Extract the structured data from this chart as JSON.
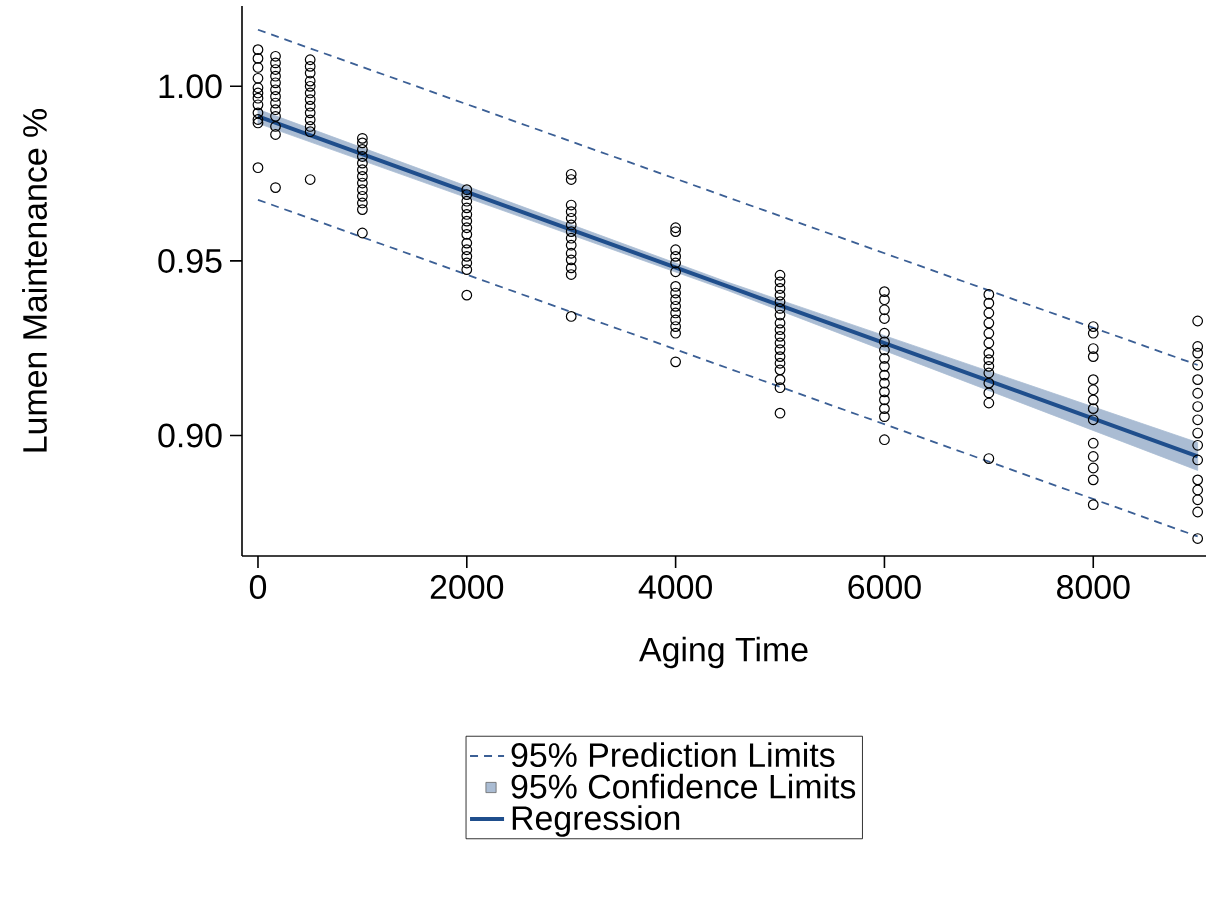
{
  "chart_data": {
    "type": "scatter",
    "xlabel": "Aging Time",
    "ylabel": "Lumen Maintenance %",
    "xlim": [
      -153,
      9080
    ],
    "ylim": [
      0.8655,
      1.023
    ],
    "xticks": [
      0,
      2000,
      4000,
      6000,
      8000
    ],
    "yticks": [
      {
        "value": 0.9,
        "label": "0.90"
      },
      {
        "value": 0.95,
        "label": "0.95"
      },
      {
        "value": 1.0,
        "label": "1.00"
      }
    ],
    "legend": "bottom",
    "annotations": [
      "95% Confidence Limits"
    ],
    "series": [
      {
        "color": "#000000",
        "marker": "circle",
        "x": [
          0,
          0,
          0,
          0,
          0,
          0,
          0,
          0,
          0,
          0,
          0,
          0,
          168,
          168,
          168,
          168,
          168,
          168,
          168,
          168,
          168,
          168,
          168,
          168,
          168,
          500,
          500,
          500,
          500,
          500,
          500,
          500,
          500,
          500,
          500,
          500,
          500,
          500,
          1000,
          1000,
          1000,
          1000,
          1000,
          1000,
          1000,
          1000,
          1000,
          1000,
          1000,
          1000,
          1000,
          2000,
          2000,
          2000,
          2000,
          2000,
          2000,
          2000,
          2000,
          2000,
          2000,
          2000,
          2000,
          2000,
          2000,
          3000,
          3000,
          3000,
          3000,
          3000,
          3000,
          3000,
          3000,
          3000,
          3000,
          3000,
          3000,
          3000,
          3000,
          4000,
          4000,
          4000,
          4000,
          4000,
          4000,
          4000,
          4000,
          4000,
          4000,
          4000,
          4000,
          4000,
          4000,
          4000,
          5000,
          5000,
          5000,
          5000,
          5000,
          5000,
          5000,
          5000,
          5000,
          5000,
          5000,
          5000,
          5000,
          5000,
          5000,
          5000,
          5000,
          5000,
          6000,
          6000,
          6000,
          6000,
          6000,
          6000,
          6000,
          6000,
          6000,
          6000,
          6000,
          6000,
          6000,
          6000,
          6000,
          6000,
          7000,
          7000,
          7000,
          7000,
          7000,
          7000,
          7000,
          7000,
          7000,
          7000,
          7000,
          7000,
          7000,
          7000,
          8000,
          8000,
          8000,
          8000,
          8000,
          8000,
          8000,
          8000,
          8000,
          8000,
          8000,
          8000,
          8000,
          8000,
          9000,
          9000,
          9000,
          9000,
          9000,
          9000,
          9000,
          9000,
          9000,
          9000,
          9000,
          9000,
          9000,
          9000,
          9000,
          9000
        ],
        "values": [
          1.0105,
          1.008,
          1.0054,
          1.0023,
          0.9996,
          0.9981,
          0.9966,
          0.9947,
          0.9924,
          0.9905,
          0.9895,
          0.9767,
          1.0086,
          1.0067,
          1.0048,
          1.0029,
          1.001,
          0.999,
          0.9971,
          0.9952,
          0.9933,
          0.9914,
          0.9885,
          0.9862,
          0.971,
          1.0076,
          1.0057,
          1.0038,
          1.0015,
          1.0,
          0.9981,
          0.9962,
          0.9943,
          0.9924,
          0.9904,
          0.9885,
          0.987,
          0.9733,
          0.9851,
          0.9838,
          0.9819,
          0.9799,
          0.978,
          0.9761,
          0.9742,
          0.9723,
          0.9704,
          0.9685,
          0.9666,
          0.9647,
          0.958,
          0.9704,
          0.969,
          0.9671,
          0.9652,
          0.9633,
          0.9614,
          0.9595,
          0.9576,
          0.9551,
          0.9532,
          0.9513,
          0.9494,
          0.9475,
          0.9402,
          0.9748,
          0.9733,
          0.966,
          0.9641,
          0.9622,
          0.9603,
          0.9584,
          0.9565,
          0.9545,
          0.9522,
          0.9503,
          0.948,
          0.9461,
          0.9341,
          0.9595,
          0.9584,
          0.9532,
          0.9513,
          0.9494,
          0.9469,
          0.9427,
          0.9408,
          0.9389,
          0.937,
          0.9351,
          0.9331,
          0.9312,
          0.9293,
          0.9211,
          0.9459,
          0.944,
          0.9421,
          0.9402,
          0.9383,
          0.9364,
          0.9345,
          0.9322,
          0.9303,
          0.9284,
          0.9265,
          0.9246,
          0.9226,
          0.9207,
          0.9188,
          0.916,
          0.9137,
          0.9064,
          0.9412,
          0.9389,
          0.936,
          0.9335,
          0.9293,
          0.9268,
          0.9245,
          0.9221,
          0.9198,
          0.9173,
          0.915,
          0.9125,
          0.9102,
          0.9077,
          0.9054,
          0.8988,
          0.9404,
          0.9379,
          0.9351,
          0.9322,
          0.9293,
          0.9265,
          0.9236,
          0.9217,
          0.9198,
          0.9179,
          0.915,
          0.9122,
          0.9093,
          0.8934,
          0.9312,
          0.9293,
          0.9249,
          0.9226,
          0.916,
          0.9131,
          0.9102,
          0.9077,
          0.9045,
          0.8978,
          0.894,
          0.8907,
          0.8873,
          0.8802,
          0.9328,
          0.9255,
          0.9236,
          0.9202,
          0.916,
          0.9121,
          0.9083,
          0.9045,
          0.9007,
          0.8972,
          0.893,
          0.8873,
          0.8844,
          0.8816,
          0.8781,
          0.8705
        ]
      },
      {
        "name": "95% Prediction Limits",
        "type": "line",
        "line_style": "dashed",
        "color": "#3b5f95",
        "x": [
          0,
          9000
        ],
        "values": [
          1.0162,
          0.9202
        ]
      },
      {
        "type": "line",
        "line_style": "dashed",
        "color": "#3b5f95",
        "x": [
          0,
          9000
        ],
        "values": [
          0.9675,
          0.8711
        ]
      },
      {
        "name": "Regression",
        "type": "line",
        "line_style": "solid",
        "color": "#1f4e8c",
        "x": [
          0,
          4500,
          9000
        ],
        "values": [
          0.9914,
          0.9427,
          0.894
        ],
        "lower": [
          0.9894,
          0.9415,
          0.89
        ],
        "upper": [
          0.9934,
          0.9439,
          0.898
        ]
      }
    ]
  }
}
